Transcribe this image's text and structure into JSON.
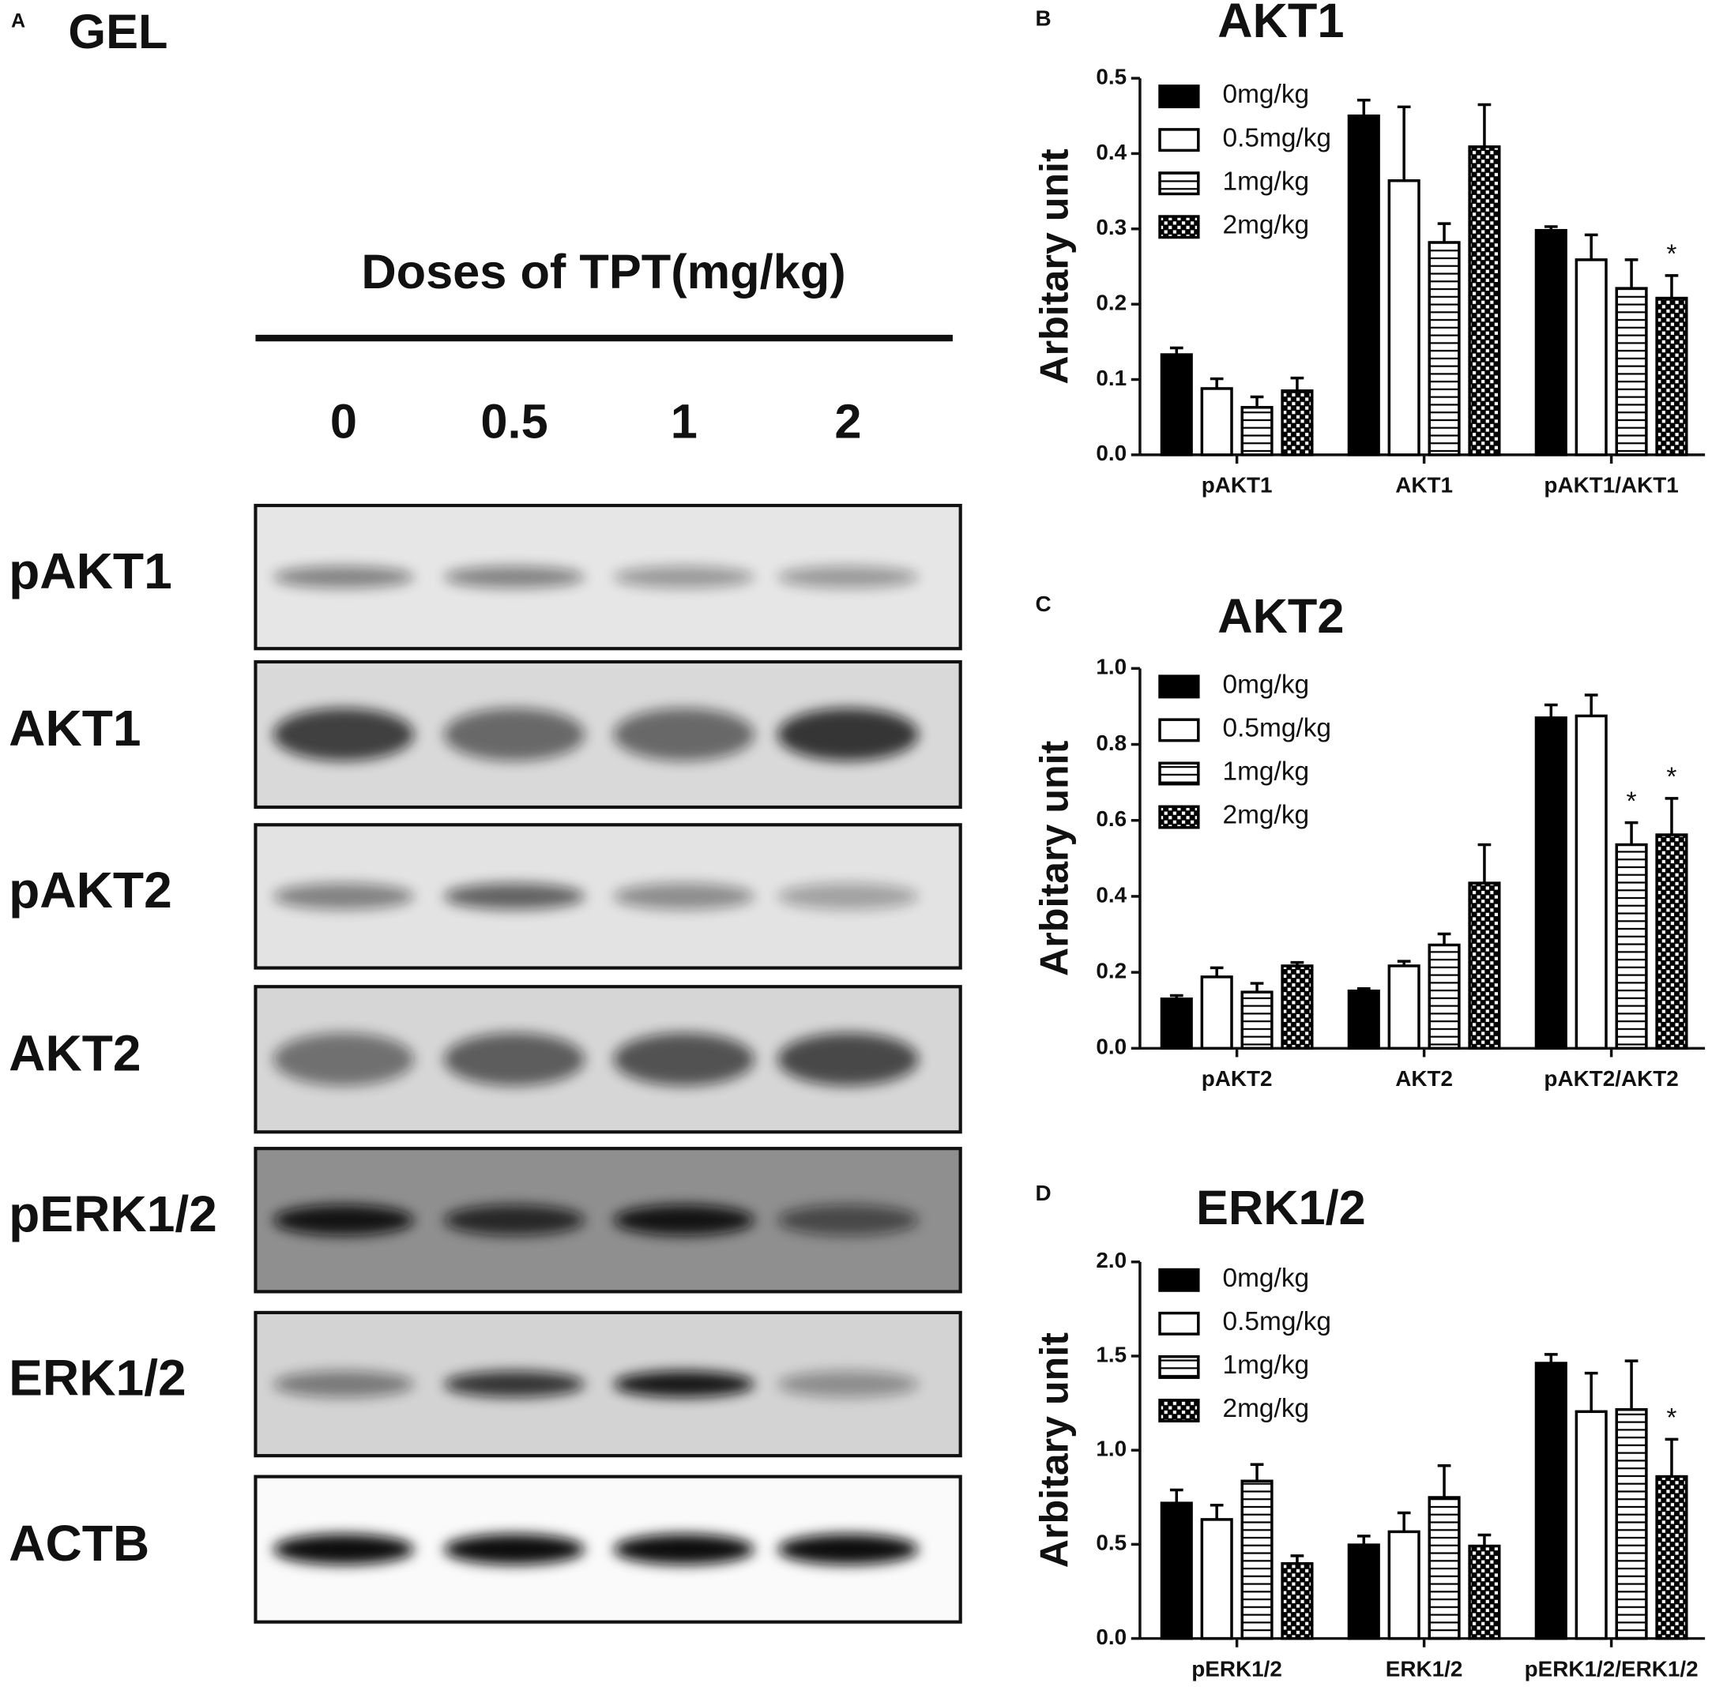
{
  "gel": {
    "panel": "A",
    "title": "GEL",
    "header": "Doses of TPT(mg/kg)",
    "lanes": [
      "0",
      "0.5",
      "1",
      "2"
    ],
    "rows": [
      "pAKT1",
      "AKT1",
      "pAKT2",
      "AKT2",
      "pERK1/2",
      "ERK1/2",
      "ACTB"
    ]
  },
  "chart_data": [
    {
      "type": "bar",
      "panel": "B",
      "title": "AKT1",
      "ylabel": "Arbitary unit",
      "categories": [
        "pAKT1",
        "AKT1",
        "pAKT1/AKT1"
      ],
      "ylim": [
        0,
        0.5
      ],
      "yticks": [
        {
          "value": 0,
          "label": "0.0"
        },
        0.1,
        0.2,
        0.3,
        0.4,
        0.5
      ],
      "series": [
        {
          "name": "0mg/kg",
          "color": "#000000",
          "pattern": "solid",
          "values": [
            0.133,
            0.45,
            0.298
          ],
          "errors": [
            0.009,
            0.021,
            0.005
          ],
          "significance": [
            null,
            null,
            null
          ]
        },
        {
          "name": "0.5mg/kg",
          "color": "#ffffff",
          "pattern": "solid",
          "values": [
            0.088,
            0.364,
            0.259
          ],
          "errors": [
            0.013,
            0.098,
            0.033
          ],
          "significance": [
            null,
            null,
            null
          ]
        },
        {
          "name": "1mg/kg",
          "color": "#000000",
          "pattern": "stripes",
          "values": [
            0.063,
            0.282,
            0.221
          ],
          "errors": [
            0.014,
            0.025,
            0.038
          ],
          "significance": [
            null,
            null,
            null
          ]
        },
        {
          "name": "2mg/kg",
          "color": "#000000",
          "pattern": "checker",
          "values": [
            0.085,
            0.409,
            0.208
          ],
          "errors": [
            0.017,
            0.056,
            0.03
          ],
          "significance": [
            null,
            null,
            "*"
          ]
        }
      ]
    },
    {
      "type": "bar",
      "panel": "C",
      "title": "AKT2",
      "ylabel": "Arbitary unit",
      "categories": [
        "pAKT2",
        "AKT2",
        "pAKT2/AKT2"
      ],
      "ylim": [
        0,
        1
      ],
      "yticks": [
        {
          "value": 0,
          "label": "0.0"
        },
        0.2,
        0.4,
        0.6,
        0.8,
        {
          "value": 1,
          "label": "1.0"
        }
      ],
      "series": [
        {
          "name": "0mg/kg",
          "color": "#000000",
          "pattern": "solid",
          "values": [
            0.13,
            0.151,
            0.87
          ],
          "errors": [
            0.009,
            0.006,
            0.034
          ],
          "significance": [
            null,
            null,
            null
          ]
        },
        {
          "name": "0.5mg/kg",
          "color": "#ffffff",
          "pattern": "solid",
          "values": [
            0.188,
            0.217,
            0.875
          ],
          "errors": [
            0.024,
            0.012,
            0.055
          ],
          "significance": [
            null,
            null,
            null
          ]
        },
        {
          "name": "1mg/kg",
          "color": "#000000",
          "pattern": "stripes",
          "values": [
            0.148,
            0.272,
            0.536
          ],
          "errors": [
            0.023,
            0.029,
            0.058
          ],
          "significance": [
            null,
            null,
            "*"
          ]
        },
        {
          "name": "2mg/kg",
          "color": "#000000",
          "pattern": "checker",
          "values": [
            0.217,
            0.435,
            0.562
          ],
          "errors": [
            0.009,
            0.101,
            0.096
          ],
          "significance": [
            null,
            null,
            "*"
          ]
        }
      ]
    },
    {
      "type": "bar",
      "panel": "D",
      "title": "ERK1/2",
      "ylabel": "Arbitary unit",
      "categories": [
        "pERK1/2",
        "ERK1/2",
        "pERK1/2/ERK1/2"
      ],
      "ylim": [
        0,
        2
      ],
      "yticks": [
        {
          "value": 0,
          "label": "0.0"
        },
        0.5,
        {
          "value": 1,
          "label": "1.0"
        },
        1.5,
        {
          "value": 2,
          "label": "2.0"
        }
      ],
      "series": [
        {
          "name": "0mg/kg",
          "color": "#000000",
          "pattern": "solid",
          "values": [
            0.719,
            0.497,
            1.462
          ],
          "errors": [
            0.07,
            0.047,
            0.047
          ],
          "significance": [
            null,
            null,
            null
          ]
        },
        {
          "name": "0.5mg/kg",
          "color": "#ffffff",
          "pattern": "solid",
          "values": [
            0.632,
            0.567,
            1.205
          ],
          "errors": [
            0.076,
            0.1,
            0.204
          ],
          "significance": [
            null,
            null,
            null
          ]
        },
        {
          "name": "1mg/kg",
          "color": "#000000",
          "pattern": "stripes",
          "values": [
            0.836,
            0.749,
            1.216
          ],
          "errors": [
            0.088,
            0.169,
            0.258
          ],
          "significance": [
            null,
            null,
            null
          ]
        },
        {
          "name": "2mg/kg",
          "color": "#000000",
          "pattern": "checker",
          "values": [
            0.398,
            0.491,
            0.86
          ],
          "errors": [
            0.041,
            0.059,
            0.198
          ],
          "significance": [
            null,
            null,
            "*"
          ]
        }
      ]
    }
  ]
}
